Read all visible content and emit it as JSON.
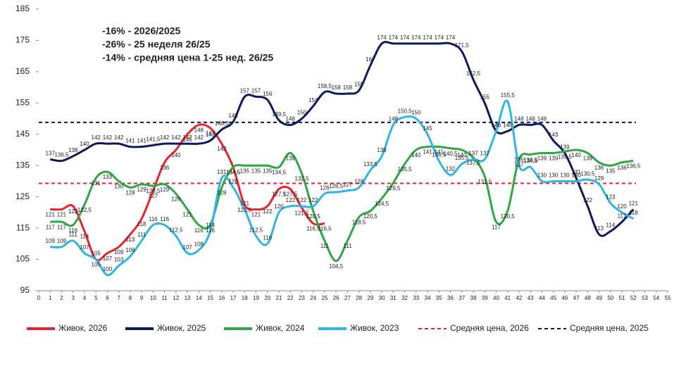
{
  "chart_data": {
    "type": "line",
    "annotations": [
      "-16% - 2026/2025",
      "-26%  - 25 неделя 26/25",
      "-14% - средняя цена 1-25 нед. 26/25"
    ],
    "x": [
      1,
      2,
      3,
      4,
      5,
      6,
      7,
      8,
      9,
      10,
      11,
      12,
      13,
      14,
      15,
      16,
      17,
      18,
      19,
      20,
      21,
      22,
      23,
      24,
      25,
      26,
      27,
      28,
      29,
      30,
      31,
      32,
      33,
      34,
      35,
      36,
      37,
      38,
      39,
      40,
      41,
      42,
      43,
      44,
      45,
      46,
      47,
      48,
      49,
      50,
      51,
      52
    ],
    "xlim": [
      0,
      55
    ],
    "xticks": [
      0,
      1,
      2,
      3,
      4,
      5,
      6,
      7,
      8,
      9,
      10,
      11,
      12,
      13,
      14,
      15,
      16,
      17,
      18,
      19,
      20,
      21,
      22,
      23,
      24,
      25,
      26,
      27,
      28,
      29,
      30,
      31,
      32,
      33,
      34,
      35,
      36,
      37,
      38,
      39,
      40,
      41,
      42,
      43,
      44,
      45,
      46,
      47,
      48,
      49,
      50,
      51,
      52,
      53,
      54,
      55
    ],
    "ylim": [
      95,
      185
    ],
    "yticks": [
      95,
      105,
      115,
      125,
      135,
      145,
      155,
      165,
      175,
      185
    ],
    "series": [
      {
        "name": "Живок, 2026",
        "color": "#e8232a",
        "values": [
          121,
          121,
          122,
          114,
          105,
          107,
          109,
          113,
          118,
          127,
          136,
          140,
          145,
          148,
          147,
          142,
          134.5,
          122.5,
          121,
          122,
          127.5,
          127.5,
          121.5,
          116.5,
          116.5,
          null,
          null,
          null,
          null,
          null,
          null,
          null,
          null,
          null,
          null,
          null,
          null,
          null,
          null,
          null,
          null,
          null,
          null,
          null,
          null,
          null,
          null,
          null,
          null,
          null,
          null,
          null
        ],
        "value_labels": [
          "121",
          "121",
          "122",
          "114",
          "105",
          "107",
          "109",
          "113",
          "118",
          "127",
          "136",
          "140",
          "145",
          "148",
          "147",
          "142",
          "134,5",
          "122,5",
          "121",
          "122",
          "127,5",
          "127,5",
          "121,5",
          "116,5",
          "116,5",
          null,
          null,
          null,
          null,
          null,
          null,
          null,
          null,
          null,
          null,
          null,
          null,
          null,
          null,
          null,
          null,
          null,
          null,
          null,
          null,
          null,
          null,
          null,
          null,
          null,
          null,
          null
        ]
      },
      {
        "name": "Живок, 2025",
        "color": "#0d1b5e",
        "values": [
          137,
          136.5,
          138,
          140,
          142,
          142,
          142,
          141,
          141,
          141.5,
          142,
          142,
          142,
          142,
          143,
          146.5,
          149,
          157,
          157,
          156,
          149.5,
          148,
          150,
          154,
          158.5,
          158,
          158,
          159,
          167,
          174,
          174,
          174,
          174,
          174,
          174,
          174,
          171.5,
          162.5,
          155,
          146,
          146,
          148,
          148,
          148,
          143,
          139,
          131,
          122,
          113,
          114,
          117,
          121
        ],
        "value_labels": [
          "137",
          "136,5",
          "138",
          "140",
          "142",
          "142",
          "142",
          "141",
          "141",
          "141,5",
          "142",
          "142",
          "142",
          "142",
          "143",
          "146,5",
          "149",
          "157",
          "157",
          "156",
          "149,5",
          "148",
          "150",
          "154",
          "158,5",
          "158",
          "158",
          "159",
          "167",
          "174",
          "174",
          "174",
          "174",
          "174",
          "174",
          "174",
          "171,5",
          "162,5",
          "155",
          "146",
          "146",
          "148",
          "148",
          "148",
          "143",
          "139",
          "131",
          "122",
          "113",
          "114",
          "117",
          "121"
        ]
      },
      {
        "name": "Живок, 2024",
        "color": "#2ca844",
        "values": [
          117,
          117,
          116,
          122.5,
          131,
          133,
          130,
          128,
          129,
          128.5,
          129,
          126,
          121,
          116,
          116,
          128,
          134.5,
          135,
          135,
          135,
          134.5,
          139,
          132.5,
          120.5,
          111,
          104.5,
          111,
          118.5,
          120.5,
          124.5,
          129.5,
          135.5,
          140,
          141,
          141,
          140.5,
          140,
          137.5,
          131.5,
          117,
          120.5,
          137,
          138.5,
          139,
          139,
          139.5,
          140,
          139,
          136,
          135,
          136,
          136.5
        ],
        "value_labels": [
          "117",
          "117",
          "116",
          "122,5",
          "131",
          "133",
          "130",
          "128",
          "129",
          "128,5",
          "129",
          "126",
          "121",
          "116",
          "116",
          "128",
          "134,5",
          "135",
          "135",
          "135",
          "134,5",
          "139",
          "132,5",
          "120,5",
          "111",
          "104,5",
          "111",
          "118,5",
          "120,5",
          "124,5",
          "129,5",
          "135,5",
          "140",
          "141",
          "141",
          "140,5",
          "140",
          "137,5",
          "131,5",
          "117",
          "120,5",
          "137",
          "138,5",
          "139",
          "139",
          "139,5",
          "140",
          "139",
          "136",
          "135",
          "136",
          "136,5"
        ]
      },
      {
        "name": "Живок, 2023",
        "color": "#2fb5e8",
        "values": [
          109,
          109,
          111,
          107,
          105,
          100,
          103,
          106,
          111,
          116,
          116,
          112.5,
          107,
          108,
          114,
          131,
          128,
          121,
          112.5,
          110,
          120,
          122,
          122,
          122,
          126,
          126.5,
          127,
          128,
          133.5,
          138,
          148,
          150.5,
          150,
          145,
          136.5,
          132,
          135.5,
          137,
          137,
          146,
          155.5,
          135,
          134.5,
          130,
          130,
          130,
          130,
          130.5,
          129,
          123,
          120,
          118
        ],
        "value_labels": [
          "109",
          "109",
          "111",
          "107",
          "105",
          "100",
          "103",
          "106",
          "111",
          "116",
          "116",
          "112,5",
          "107",
          "108",
          "114",
          "131",
          "128",
          "121",
          "112,5",
          "110",
          "120",
          "122",
          "122",
          "122",
          "126",
          "126,5",
          "127",
          "128",
          "133,5",
          "138",
          "148",
          "150,5",
          "150",
          "145",
          "136,5",
          "132",
          "135,5",
          "137",
          "137",
          "146",
          "155,5",
          "135",
          "134,5",
          "130",
          "130",
          "130",
          "130",
          "130,5",
          "129",
          "123",
          "120",
          "118"
        ]
      }
    ],
    "reference_lines": [
      {
        "name": "Средняя цена, 2026",
        "color": "#e8232a",
        "value": 129.3
      },
      {
        "name": "Средняя цена, 2025",
        "color": "#0d1b5e",
        "value": 148.8
      }
    ]
  }
}
